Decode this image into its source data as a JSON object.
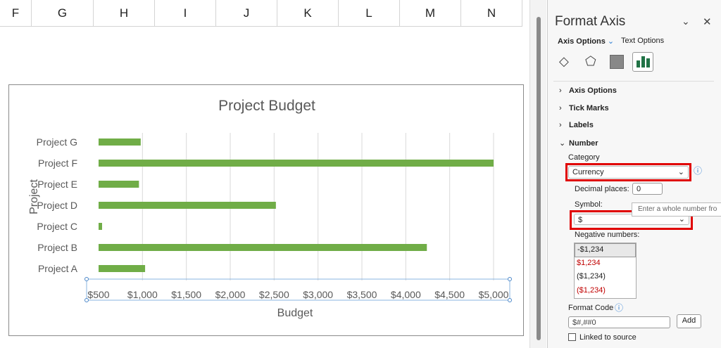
{
  "sheet": {
    "columns": [
      "F",
      "G",
      "H",
      "I",
      "J",
      "K",
      "L",
      "M",
      "N"
    ]
  },
  "chart_data": {
    "type": "bar",
    "orientation": "horizontal",
    "title": "Project Budget",
    "xlabel": "Budget",
    "ylabel": "Project",
    "categories": [
      "Project G",
      "Project F",
      "Project E",
      "Project D",
      "Project C",
      "Project B",
      "Project A"
    ],
    "values": [
      980,
      5000,
      960,
      2520,
      540,
      4240,
      1030
    ],
    "xlim": [
      500,
      5000
    ],
    "xticks": [
      "$500",
      "$1,000",
      "$1,500",
      "$2,000",
      "$2,500",
      "$3,000",
      "$3,500",
      "$4,000",
      "$4,500",
      "$5,000"
    ],
    "grid": true,
    "bar_color": "#70ad47"
  },
  "panel": {
    "title": "Format Axis",
    "tabs": {
      "axis_options": "Axis Options",
      "text_options": "Text Options"
    },
    "sections": {
      "axis_options": "Axis Options",
      "tick_marks": "Tick Marks",
      "labels": "Labels",
      "number": "Number"
    },
    "category_label": "Category",
    "category_value": "Currency",
    "decimal_label": "Decimal places:",
    "decimal_value": "0",
    "symbol_label": "Symbol:",
    "symbol_value": "$",
    "tooltip": "Enter a whole number fro",
    "negative_label": "Negative numbers:",
    "negative_options": [
      "-$1,234",
      "$1,234",
      "($1,234)",
      "($1,234)"
    ],
    "format_code_label": "Format Code",
    "format_code_value": "$#,##0",
    "add_label": "Add",
    "linked_label": "Linked to source",
    "accent": "#217346",
    "highlight": "#e00000"
  }
}
